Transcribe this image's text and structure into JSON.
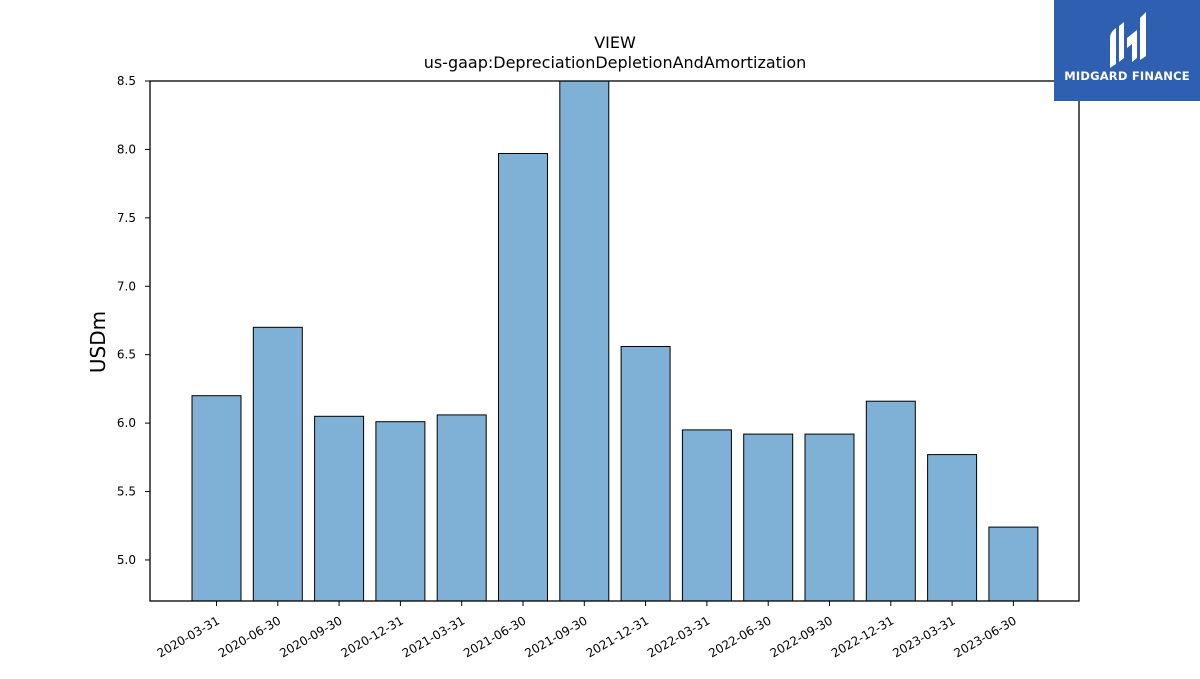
{
  "brand": {
    "name": "MIDGARD FINANCE",
    "bg_color": "#2f5fb0"
  },
  "chart_data": {
    "type": "bar",
    "title": "VIEW",
    "subtitle": "us-gaap:DepreciationDepletionAndAmortization",
    "xlabel": "",
    "ylabel": "USDm",
    "categories": [
      "2020-03-31",
      "2020-06-30",
      "2020-09-30",
      "2020-12-31",
      "2021-03-31",
      "2021-06-30",
      "2021-09-30",
      "2021-12-31",
      "2022-03-31",
      "2022-06-30",
      "2022-09-30",
      "2022-12-31",
      "2023-03-31",
      "2023-06-30"
    ],
    "values": [
      6.2,
      6.7,
      6.05,
      6.01,
      6.06,
      7.97,
      8.52,
      6.56,
      5.95,
      5.92,
      5.92,
      6.16,
      5.77,
      5.24
    ],
    "ylim": [
      4.7,
      8.5
    ],
    "yticks": [
      "5.0",
      "5.5",
      "6.0",
      "6.5",
      "7.0",
      "7.5",
      "8.0",
      "8.5"
    ],
    "grid": false,
    "bar_color": "#7fb0d5"
  }
}
